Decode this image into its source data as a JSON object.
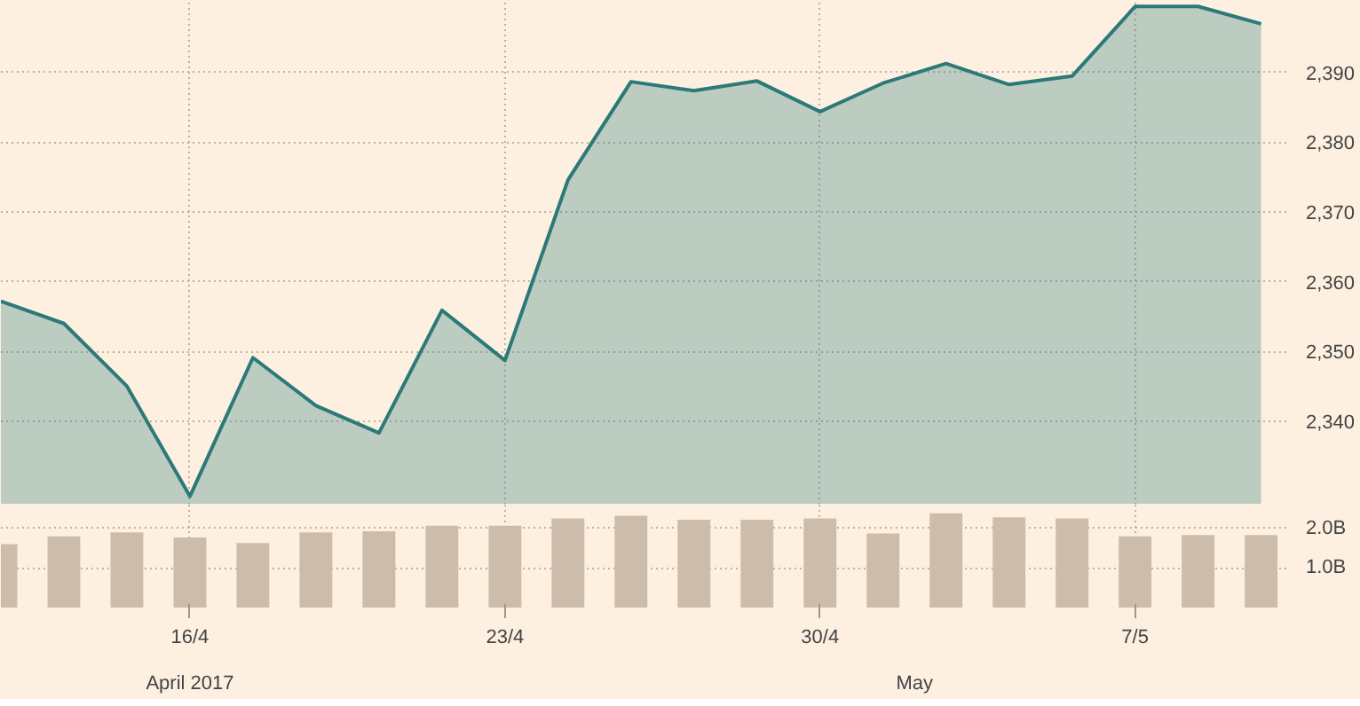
{
  "chart_data": [
    {
      "type": "area",
      "categories": [
        null,
        null,
        null,
        null,
        null,
        null,
        null,
        null,
        null,
        null,
        null,
        null,
        null,
        null,
        null,
        null,
        null,
        null,
        null,
        null,
        null
      ],
      "series": [
        {
          "color": "#2c7a78",
          "values": [
            2357.2,
            2354.0,
            2345.0,
            2329.2,
            2349.1,
            2342.2,
            2338.3,
            2355.9,
            2348.7,
            2374.6,
            2388.7,
            2387.4,
            2388.8,
            2384.4,
            2388.5,
            2391.3,
            2388.3,
            2389.5,
            2399.5,
            2399.5,
            2397.0
          ]
        }
      ],
      "ylim": [
        2328,
        2400.3
      ],
      "yticks": [
        {
          "value": 2340,
          "label": "2,340"
        },
        {
          "value": 2350,
          "label": "2,350"
        },
        {
          "value": 2360,
          "label": "2,360"
        },
        {
          "value": 2370,
          "label": "2,370"
        },
        {
          "value": 2380,
          "label": "2,380"
        },
        {
          "value": 2390,
          "label": "2,390"
        }
      ],
      "grid": true,
      "tick_labels": "y"
    },
    {
      "type": "bar",
      "categories": [
        null,
        null,
        null,
        "16/4",
        null,
        null,
        null,
        null,
        "23/4",
        null,
        null,
        null,
        null,
        "30/4",
        null,
        null,
        null,
        null,
        "7/5",
        null,
        null
      ],
      "series": [
        {
          "color": "#cdbcaa",
          "values": [
            1.6,
            1.8,
            1.9,
            1.77,
            1.63,
            1.9,
            1.93,
            2.07,
            2.07,
            2.25,
            2.32,
            2.22,
            2.22,
            2.25,
            1.87,
            2.38,
            2.28,
            2.25,
            1.8,
            1.83,
            1.83
          ]
        }
      ],
      "ylim": [
        0,
        2.6
      ],
      "yticks": [
        {
          "value": 1,
          "label": "1.0B"
        },
        {
          "value": 2,
          "label": "2.0B"
        }
      ],
      "annotations": [
        "April 2017",
        "May"
      ],
      "grid": true
    }
  ]
}
